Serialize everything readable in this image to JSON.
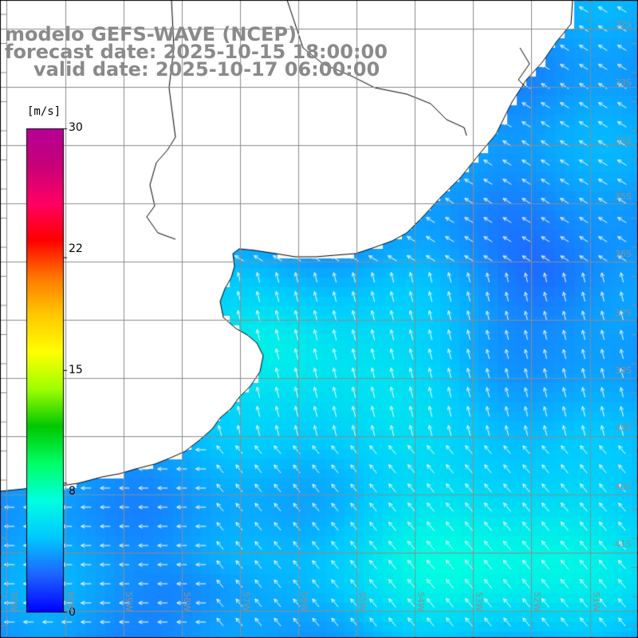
{
  "title": {
    "line1": "modelo GEFS-WAVE (NCEP)",
    "line2": "forecast date: 2025-10-15 18:00:00",
    "line3": "valid date: 2025-10-17 06:00:00"
  },
  "colorbar": {
    "unit": "[m/s]",
    "min": 0,
    "max": 30,
    "ticks": [
      {
        "value": 30,
        "label": "30"
      },
      {
        "value": 22,
        "label": "22"
      },
      {
        "value": 15,
        "label": "15"
      },
      {
        "value": 8,
        "label": "8"
      },
      {
        "value": 0,
        "label": "0"
      }
    ],
    "colors": [
      "#0000ff",
      "#1e64ff",
      "#00c8ff",
      "#00ffe0",
      "#00ff64",
      "#00c800",
      "#a0ff00",
      "#ffff00",
      "#ffc800",
      "#ff7800",
      "#ff0000",
      "#ff0064",
      "#c80078",
      "#b40096"
    ]
  },
  "lat_labels": [
    "32S",
    "33S",
    "34S",
    "35S",
    "36S",
    "37S",
    "38S",
    "39S",
    "40S",
    "41S"
  ],
  "lon_labels": [
    "60W",
    "59W",
    "58W",
    "57W",
    "56W",
    "55W",
    "54W",
    "53W",
    "52W",
    "51W",
    "50W"
  ],
  "colors": {
    "land": "#ffffff",
    "coast": "#000000",
    "grid": "#8c8c8c",
    "arrow": "#ffffff",
    "title": "#8a8a8a"
  }
}
